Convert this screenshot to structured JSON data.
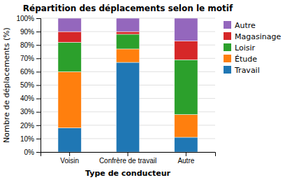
{
  "chart_data": {
    "type": "bar",
    "stacked": true,
    "title": "Répartition des déplacements selon le motif",
    "xlabel": "Type de conducteur",
    "ylabel": "Nombre de déplacements (%)",
    "categories": [
      "Voisin",
      "Confrère de travail",
      "Autre"
    ],
    "series": [
      {
        "name": "Travail",
        "values": [
          18,
          67,
          11
        ]
      },
      {
        "name": "Étude",
        "values": [
          42,
          10,
          17
        ]
      },
      {
        "name": "Loisir",
        "values": [
          22,
          11,
          41
        ]
      },
      {
        "name": "Magasinage",
        "values": [
          8,
          2,
          14
        ]
      },
      {
        "name": "Autre",
        "values": [
          10,
          10,
          17
        ]
      }
    ],
    "ylim": [
      0,
      100
    ],
    "yticks": [
      {
        "value": 0,
        "label": "0%"
      },
      {
        "value": 10,
        "label": "10%"
      },
      {
        "value": 20,
        "label": "20%"
      },
      {
        "value": 30,
        "label": "30%"
      },
      {
        "value": 40,
        "label": "40%"
      },
      {
        "value": 50,
        "label": "50%"
      },
      {
        "value": 60,
        "label": "60%"
      },
      {
        "value": 70,
        "label": "70%"
      },
      {
        "value": 80,
        "label": "80%"
      },
      {
        "value": 90,
        "label": "90%"
      },
      {
        "value": 100,
        "label": "100%"
      }
    ],
    "grid": true,
    "legend": "upper right"
  }
}
